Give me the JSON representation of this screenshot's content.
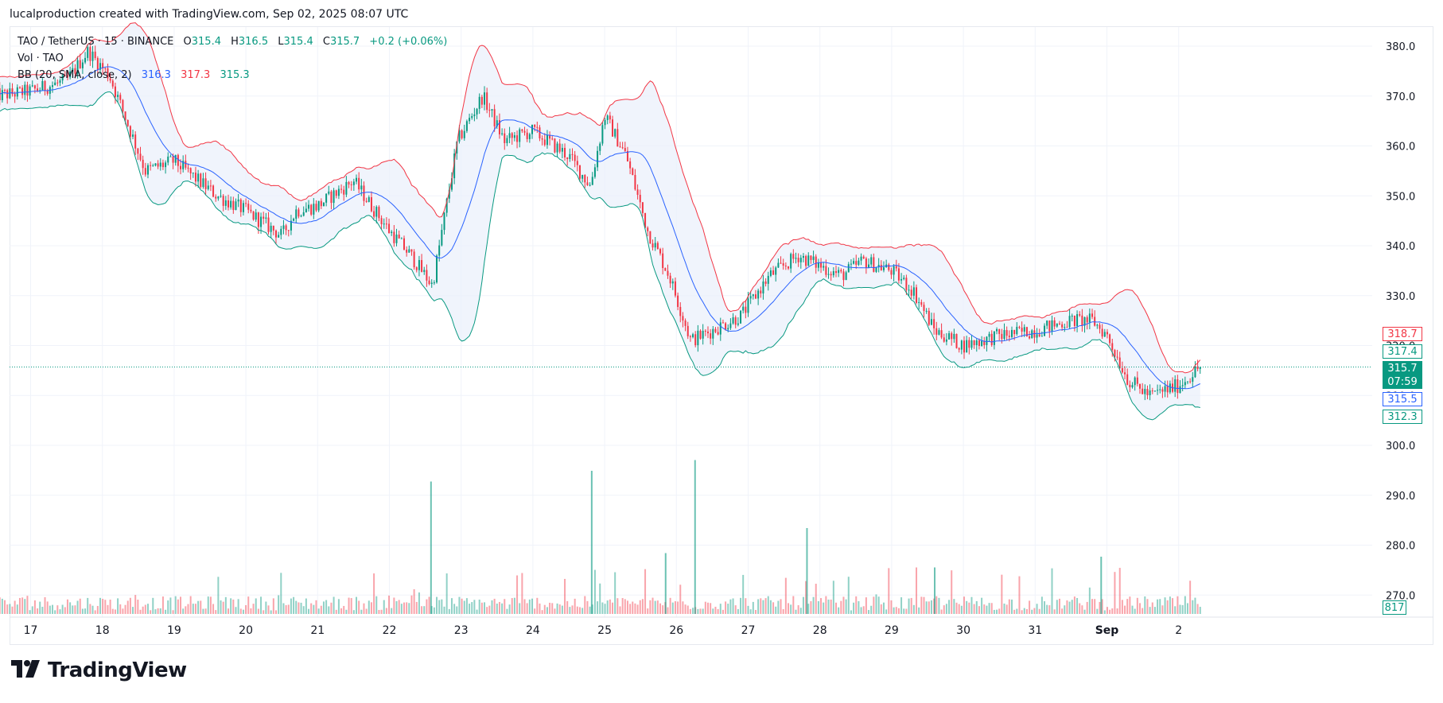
{
  "header": {
    "text": "lucalproduction created with TradingView.com, Sep 02, 2025 08:07 UTC"
  },
  "legend": {
    "symbol": "TAO / TetherUS · 15 · BINANCE",
    "open_label": "O",
    "open": "315.4",
    "high_label": "H",
    "high": "316.5",
    "low_label": "L",
    "low": "315.4",
    "close_label": "C",
    "close": "315.7",
    "change": "+0.2 (+0.06%)",
    "volume": "Vol · TAO",
    "bb_label": "BB (20, SMA, close, 2)",
    "bb_basis": "316.3",
    "bb_upper": "317.3",
    "bb_lower": "315.3"
  },
  "price_tags": {
    "upper_band": "318.7",
    "lower_band_a": "317.4",
    "last_price": "315.7",
    "countdown": "07:59",
    "basis": "315.5",
    "lower_band_b": "312.3",
    "volume": "817"
  },
  "footer": {
    "brand": "TradingView",
    "logo_icon": "tradingview-logo-icon"
  },
  "colors": {
    "up": "#089981",
    "down": "#f23645",
    "basis": "#2962ff",
    "band_fill": "#e9f0fb",
    "grid": "#f0f3fa"
  },
  "chart_data": {
    "type": "candlestick",
    "title": "TAO / TetherUS · 15 · BINANCE",
    "x_tick_labels": [
      "17",
      "18",
      "19",
      "20",
      "21",
      "22",
      "23",
      "24",
      "25",
      "26",
      "27",
      "28",
      "29",
      "30",
      "31",
      "Sep",
      "2"
    ],
    "y_tick_labels": [
      "380.0",
      "370.0",
      "360.0",
      "350.0",
      "340.0",
      "330.0",
      "320.0",
      "310.0",
      "300.0",
      "290.0",
      "280.0",
      "270.0"
    ],
    "ylim": [
      267,
      384
    ],
    "grid": true,
    "price_anchors": {
      "day": [
        16.5,
        17.0,
        17.5,
        17.8,
        18.1,
        18.6,
        19.0,
        19.6,
        20.0,
        20.5,
        20.7,
        21.0,
        21.5,
        22.0,
        22.3,
        22.6,
        22.95,
        23.3,
        23.6,
        24.0,
        24.5,
        24.8,
        25.0,
        25.3,
        25.6,
        25.9,
        26.2,
        26.5,
        26.9,
        27.3,
        27.7,
        28.0,
        28.3,
        28.6,
        29.0,
        29.3,
        29.6,
        30.0,
        30.5,
        31.0,
        31.5,
        31.8,
        32.0,
        32.3,
        32.6,
        32.8,
        33.0,
        33.3
      ],
      "close": [
        370,
        371,
        373,
        379,
        374,
        355,
        357,
        350,
        347,
        342,
        347,
        348,
        353,
        343,
        338,
        332,
        361,
        370,
        361,
        363,
        358,
        352,
        366,
        358,
        343,
        334,
        321,
        323,
        326,
        334,
        338,
        336,
        334,
        337,
        335,
        331,
        323,
        320,
        322,
        323,
        325,
        325,
        322,
        313,
        310,
        311,
        312,
        315.7
      ]
    },
    "volume_spikes": [
      {
        "day": 22.58,
        "value": 37
      },
      {
        "day": 24.82,
        "value": 40
      },
      {
        "day": 25.85,
        "value": 17
      },
      {
        "day": 26.26,
        "value": 43
      },
      {
        "day": 27.82,
        "value": 24
      },
      {
        "day": 29.6,
        "value": 13
      },
      {
        "day": 31.92,
        "value": 16
      }
    ],
    "bollinger": {
      "period": 20,
      "type": "SMA",
      "source": "close",
      "stddev": 2,
      "basis": 316.3,
      "upper": 317.3,
      "lower": 315.3
    },
    "last_price": 315.7
  }
}
